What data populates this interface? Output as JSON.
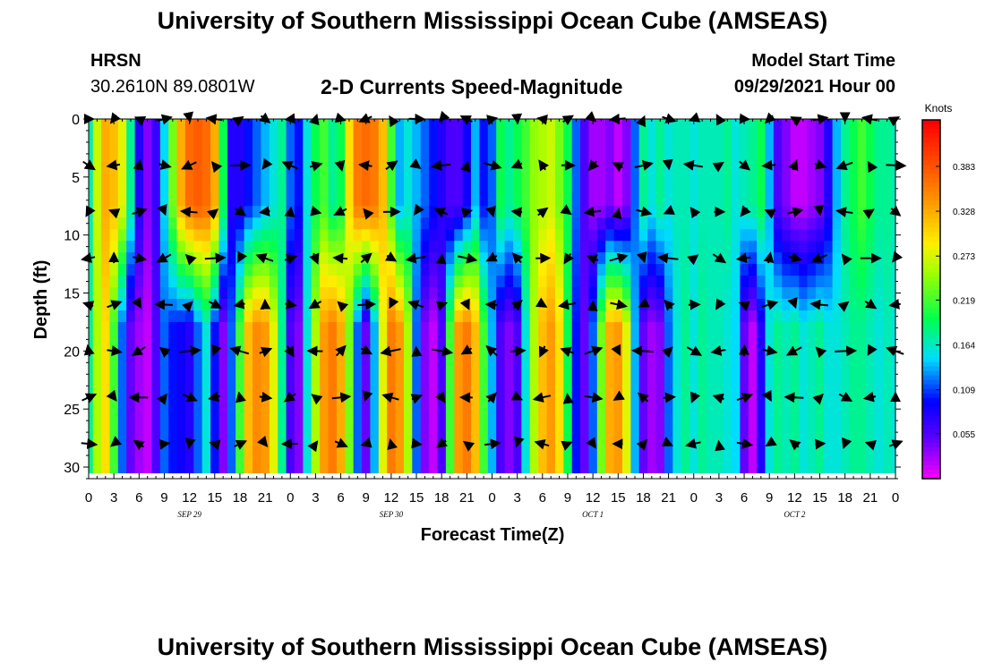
{
  "header": {
    "title": "University of Southern Mississippi Ocean Cube (AMSEAS)",
    "station": "HRSN",
    "coordinates": "30.2610N  89.0801W",
    "product": "2-D Currents Speed-Magnitude",
    "model_start_label": "Model Start Time",
    "model_start_value": "09/29/2021 Hour 00"
  },
  "footer": {
    "title": "University of Southern Mississippi Ocean Cube (AMSEAS)"
  },
  "chart_data": {
    "type": "heatmap",
    "xlabel": "Forecast Time(Z)",
    "ylabel": "Depth (ft)",
    "x_tick_labels": [
      "0",
      "3",
      "6",
      "9",
      "12",
      "15",
      "18",
      "21",
      "0",
      "3",
      "6",
      "9",
      "12",
      "15",
      "18",
      "21",
      "0",
      "3",
      "6",
      "9",
      "12",
      "15",
      "18",
      "21",
      "0",
      "3",
      "6",
      "9",
      "12",
      "15",
      "18",
      "21",
      "0"
    ],
    "date_labels": [
      {
        "label": "SEP 29",
        "hour": 12
      },
      {
        "label": "SEP 30",
        "hour": 36
      },
      {
        "label": "OCT 1",
        "hour": 60
      },
      {
        "label": "OCT 2",
        "hour": 84
      }
    ],
    "x_range_hours": [
      0,
      96
    ],
    "ylim": [
      0,
      31
    ],
    "y_ticks": [
      0,
      5,
      10,
      15,
      20,
      25,
      30
    ],
    "y_inverted": true,
    "colorbar": {
      "title": "Knots",
      "range": [
        0,
        0.44
      ],
      "tick_labels": [
        "0.383",
        "0.328",
        "0.273",
        "0.219",
        "0.164",
        "0.109",
        "0.055"
      ],
      "tick_values": [
        0.383,
        0.328,
        0.273,
        0.219,
        0.164,
        0.109,
        0.055
      ]
    },
    "speed_profile": {
      "description_hours": [
        0,
        1,
        2,
        3,
        4,
        5,
        6,
        7,
        8,
        9,
        10,
        11,
        12,
        13,
        14,
        15,
        16,
        17,
        18,
        19,
        20,
        21,
        22,
        23,
        24,
        25,
        26,
        27,
        28,
        29,
        30,
        31,
        32,
        33,
        34,
        35,
        36,
        37,
        38,
        39,
        40,
        41,
        42,
        43,
        44,
        45,
        46,
        47,
        48,
        49,
        50,
        51,
        52,
        53,
        54,
        55,
        56,
        57,
        58,
        59,
        60,
        61,
        62,
        63,
        64,
        65,
        66,
        67,
        68,
        69,
        70,
        71,
        72,
        73,
        74,
        75,
        76,
        77,
        78,
        79,
        80,
        81,
        82,
        83,
        84,
        85,
        86,
        87,
        88,
        89,
        90,
        91,
        92,
        93,
        94,
        95,
        96
      ],
      "surface": [
        0.17,
        0.27,
        0.33,
        0.32,
        0.28,
        0.18,
        0.08,
        0.04,
        0.07,
        0.15,
        0.24,
        0.33,
        0.37,
        0.38,
        0.37,
        0.33,
        0.2,
        0.08,
        0.08,
        0.1,
        0.12,
        0.14,
        0.16,
        0.18,
        0.12,
        0.1,
        0.16,
        0.2,
        0.22,
        0.18,
        0.2,
        0.3,
        0.36,
        0.37,
        0.36,
        0.32,
        0.22,
        0.14,
        0.16,
        0.14,
        0.12,
        0.1,
        0.08,
        0.06,
        0.06,
        0.09,
        0.14,
        0.1,
        0.12,
        0.2,
        0.18,
        0.2,
        0.22,
        0.25,
        0.26,
        0.27,
        0.24,
        0.2,
        0.12,
        0.06,
        0.03,
        0.03,
        0.04,
        0.02,
        0.04,
        0.12,
        0.18,
        0.16,
        0.18,
        0.16,
        0.17,
        0.17,
        0.16,
        0.17,
        0.17,
        0.17,
        0.18,
        0.16,
        0.17,
        0.18,
        0.2,
        0.14,
        0.06,
        0.04,
        0.02,
        0.02,
        0.03,
        0.04,
        0.08,
        0.14,
        0.18,
        0.2,
        0.22,
        0.2,
        0.18,
        0.18,
        0.17
      ],
      "bottom": [
        0.18,
        0.26,
        0.3,
        0.22,
        0.12,
        0.05,
        0.03,
        0.02,
        0.06,
        0.12,
        0.1,
        0.09,
        0.08,
        0.12,
        0.16,
        0.1,
        0.04,
        0.12,
        0.22,
        0.32,
        0.35,
        0.34,
        0.28,
        0.18,
        0.06,
        0.04,
        0.16,
        0.26,
        0.34,
        0.36,
        0.33,
        0.24,
        0.12,
        0.05,
        0.14,
        0.28,
        0.36,
        0.34,
        0.26,
        0.12,
        0.04,
        0.02,
        0.06,
        0.22,
        0.34,
        0.36,
        0.32,
        0.22,
        0.14,
        0.06,
        0.04,
        0.06,
        0.16,
        0.26,
        0.32,
        0.34,
        0.3,
        0.2,
        0.1,
        0.05,
        0.12,
        0.24,
        0.33,
        0.34,
        0.28,
        0.14,
        0.05,
        0.03,
        0.04,
        0.12,
        0.16,
        0.18,
        0.16,
        0.18,
        0.17,
        0.17,
        0.16,
        0.15,
        0.05,
        0.02,
        0.08,
        0.16,
        0.18,
        0.17,
        0.18,
        0.16,
        0.17,
        0.18,
        0.16,
        0.16,
        0.17,
        0.18,
        0.18,
        0.17,
        0.16,
        0.17,
        0.16
      ]
    },
    "vector_depths_ft": [
      0,
      4,
      8,
      12,
      16,
      20,
      24,
      28
    ]
  }
}
